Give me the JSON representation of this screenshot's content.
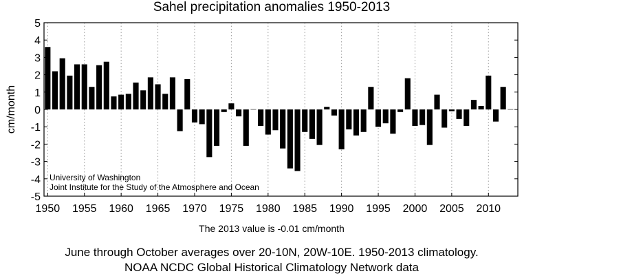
{
  "chart_data": {
    "type": "bar",
    "title": "Sahel precipitation anomalies 1950-2013",
    "xlabel": "",
    "ylabel": "cm/month",
    "ylim": [
      -5,
      5
    ],
    "xlim": [
      1949.5,
      2014
    ],
    "yticks": [
      5,
      4,
      3,
      2,
      1,
      0,
      -1,
      -2,
      -3,
      -4,
      -5
    ],
    "xticks": [
      1950,
      1955,
      1960,
      1965,
      1970,
      1975,
      1980,
      1985,
      1990,
      1995,
      2000,
      2005,
      2010
    ],
    "grid": "vertical dotted at x ticks",
    "x": [
      1950,
      1951,
      1952,
      1953,
      1954,
      1955,
      1956,
      1957,
      1958,
      1959,
      1960,
      1961,
      1962,
      1963,
      1964,
      1965,
      1966,
      1967,
      1968,
      1969,
      1970,
      1971,
      1972,
      1973,
      1974,
      1975,
      1976,
      1977,
      1978,
      1979,
      1980,
      1981,
      1982,
      1983,
      1984,
      1985,
      1986,
      1987,
      1988,
      1989,
      1990,
      1991,
      1992,
      1993,
      1994,
      1995,
      1996,
      1997,
      1998,
      1999,
      2000,
      2001,
      2002,
      2003,
      2004,
      2005,
      2006,
      2007,
      2008,
      2009,
      2010,
      2011,
      2012,
      2013
    ],
    "values": [
      3.6,
      2.2,
      2.95,
      1.95,
      2.6,
      2.6,
      1.3,
      2.55,
      2.75,
      0.75,
      0.85,
      0.9,
      1.55,
      1.1,
      1.85,
      1.45,
      0.9,
      1.85,
      -1.25,
      1.75,
      -0.75,
      -0.85,
      -2.75,
      -2.1,
      -0.15,
      0.35,
      -0.4,
      -2.1,
      0.0,
      -0.95,
      -1.45,
      -1.2,
      -2.25,
      -3.4,
      -3.55,
      -1.3,
      -1.7,
      -2.05,
      0.15,
      -0.35,
      -2.3,
      -1.15,
      -1.5,
      -1.3,
      1.3,
      -1.0,
      -0.8,
      -1.4,
      -0.15,
      1.8,
      -0.95,
      -0.9,
      -2.05,
      0.85,
      -1.05,
      -0.1,
      -0.55,
      -0.95,
      0.55,
      0.2,
      1.95,
      -0.7,
      1.3,
      -0.01
    ],
    "credit_line1": "University of Washington",
    "credit_line2": "Joint Institute for the Study of the Atmosphere and Ocean",
    "note": "The 2013 value is -0.01 cm/month"
  },
  "captions": {
    "line1": "June through October averages over 20-10N, 20W-10E. 1950-2013 climatology.",
    "line2": "NOAA NCDC Global Historical Climatology Network data"
  },
  "colors": {
    "bar": "#000000",
    "grid": "#9a9a9a",
    "background": "#ffffff"
  }
}
